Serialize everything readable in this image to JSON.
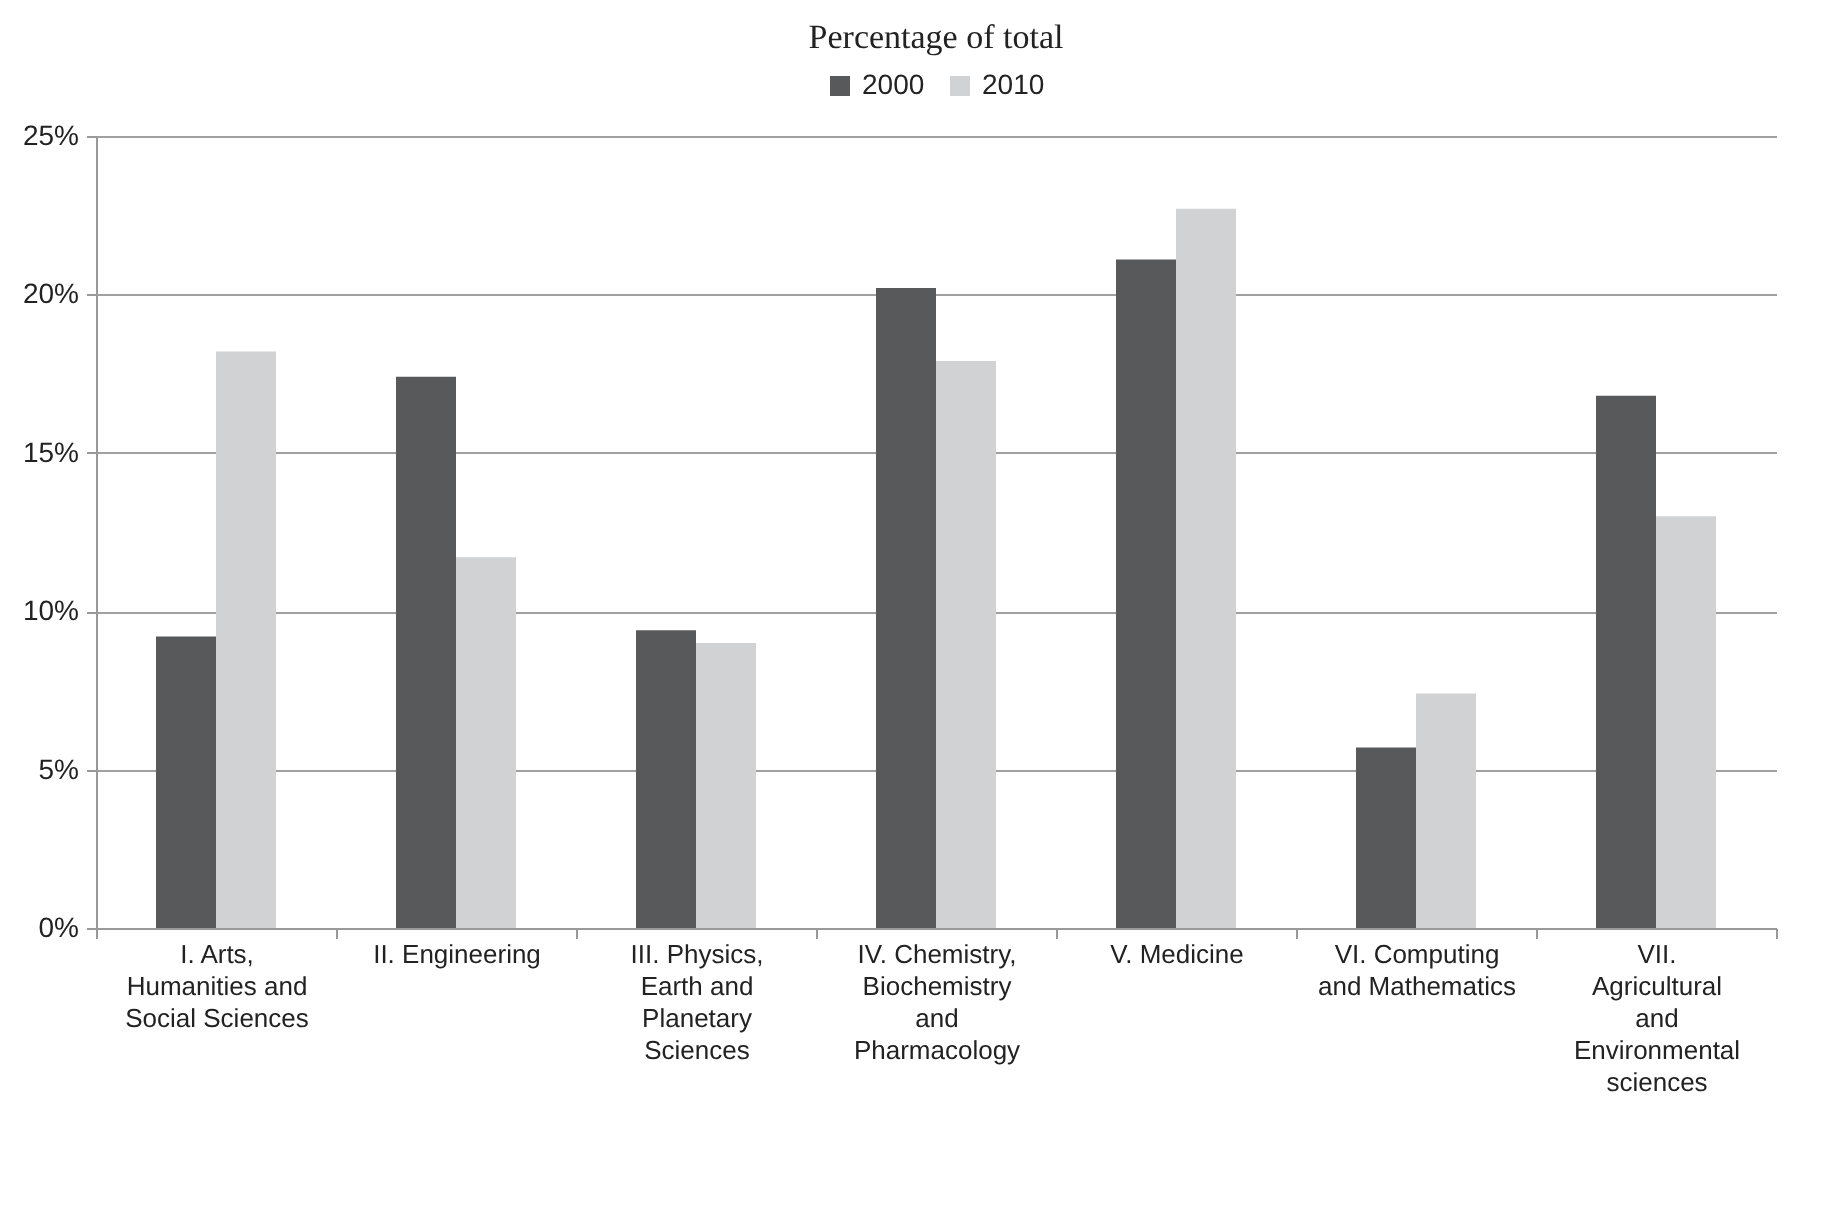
{
  "chart_data": {
    "type": "bar",
    "title": "Percentage of total",
    "categories": [
      "I. Arts, Humanities and Social Sciences",
      "II. Engineering",
      "III. Physics, Earth and Planetary Sciences",
      "IV. Chemistry, Biochemistry and Pharmacology",
      "V. Medicine",
      "VI. Computing and Mathematics",
      "VII. Agricultural and Environmental sciences"
    ],
    "series": [
      {
        "name": "2000",
        "color": "#58595b",
        "values": [
          9.2,
          17.4,
          9.4,
          20.2,
          21.1,
          5.7,
          16.8
        ]
      },
      {
        "name": "2010",
        "color": "#d1d2d4",
        "values": [
          18.2,
          11.7,
          9.0,
          17.9,
          22.7,
          7.4,
          13.0
        ]
      }
    ],
    "ylim": [
      0,
      25
    ],
    "yticks": [
      {
        "value": 0,
        "label": "0%"
      },
      {
        "value": 5,
        "label": "5%"
      },
      {
        "value": 10,
        "label": "10%"
      },
      {
        "value": 15,
        "label": "15%"
      },
      {
        "value": 20,
        "label": "20%"
      },
      {
        "value": 25,
        "label": "25%"
      }
    ],
    "grid": "y",
    "legend": "top"
  }
}
